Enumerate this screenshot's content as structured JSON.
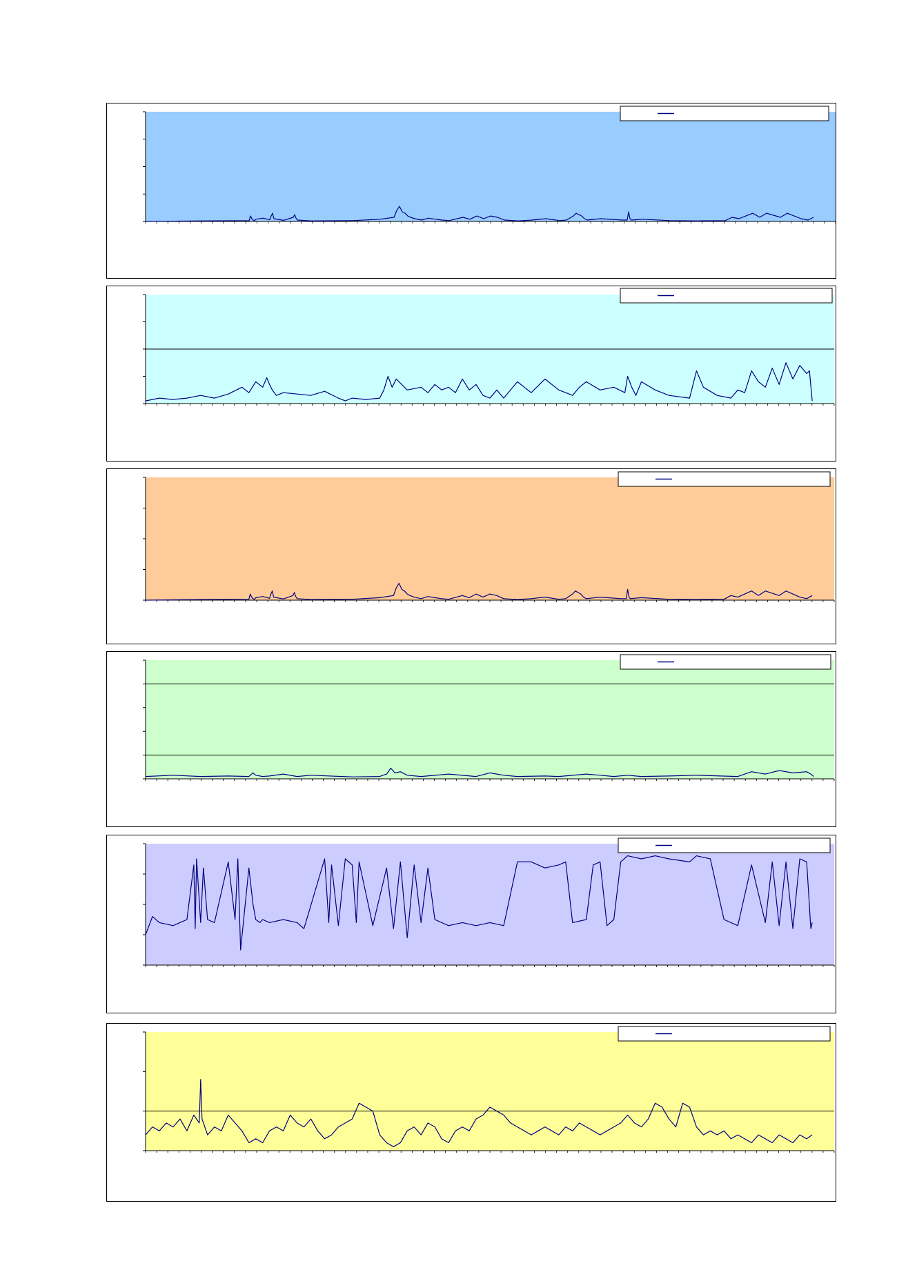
{
  "chart_data": [
    {
      "type": "line",
      "title": "",
      "legend_position": "top-right",
      "plot_bg": "#99ccff",
      "line_color": "#000080",
      "grid": {
        "horizontal": []
      },
      "ylim": [
        0,
        4
      ],
      "y_ticks": [
        0,
        1,
        2,
        3,
        4
      ],
      "x_range": [
        0,
        1000
      ],
      "series": [
        {
          "x": [
            0,
            80,
            150,
            152,
            154,
            156,
            158,
            160,
            170,
            180,
            182,
            184,
            186,
            200,
            214,
            216,
            218,
            220,
            240,
            300,
            340,
            360,
            364,
            368,
            372,
            376,
            380,
            384,
            390,
            400,
            410,
            420,
            430,
            440,
            460,
            470,
            480,
            490,
            500,
            510,
            520,
            540,
            560,
            580,
            600,
            610,
            620,
            624,
            628,
            632,
            636,
            640,
            660,
            690,
            698,
            700,
            702,
            704,
            720,
            760,
            800,
            840,
            850,
            860,
            870,
            880,
            890,
            900,
            920,
            930,
            940,
            950,
            960,
            968
          ],
          "y": [
            0.0,
            0.02,
            0.03,
            0.2,
            0.1,
            0.05,
            0.03,
            0.08,
            0.12,
            0.06,
            0.2,
            0.3,
            0.1,
            0.04,
            0.15,
            0.25,
            0.12,
            0.05,
            0.02,
            0.03,
            0.08,
            0.15,
            0.4,
            0.55,
            0.35,
            0.3,
            0.2,
            0.15,
            0.1,
            0.05,
            0.12,
            0.08,
            0.05,
            0.03,
            0.15,
            0.08,
            0.2,
            0.1,
            0.2,
            0.15,
            0.05,
            0.02,
            0.05,
            0.1,
            0.03,
            0.05,
            0.2,
            0.3,
            0.25,
            0.2,
            0.1,
            0.05,
            0.1,
            0.05,
            0.05,
            0.35,
            0.1,
            0.05,
            0.08,
            0.03,
            0.02,
            0.03,
            0.15,
            0.1,
            0.2,
            0.3,
            0.15,
            0.3,
            0.15,
            0.3,
            0.2,
            0.1,
            0.05,
            0.15
          ]
        }
      ]
    },
    {
      "type": "line",
      "title": "",
      "legend_position": "top-right",
      "plot_bg": "#ccffff",
      "line_color": "#000080",
      "grid": {
        "horizontal": [
          2
        ]
      },
      "ylim": [
        0,
        4
      ],
      "y_ticks": [
        0,
        1,
        2,
        3,
        4
      ],
      "x_range": [
        0,
        1000
      ],
      "series": [
        {
          "x": [
            0,
            20,
            40,
            60,
            80,
            100,
            120,
            140,
            150,
            160,
            170,
            176,
            180,
            184,
            190,
            200,
            220,
            240,
            260,
            280,
            290,
            300,
            320,
            340,
            346,
            352,
            358,
            364,
            380,
            400,
            410,
            420,
            430,
            440,
            450,
            460,
            470,
            480,
            490,
            500,
            510,
            520,
            540,
            560,
            580,
            600,
            610,
            620,
            630,
            640,
            660,
            680,
            696,
            700,
            706,
            712,
            720,
            740,
            760,
            790,
            796,
            800,
            810,
            830,
            850,
            860,
            870,
            880,
            890,
            900,
            910,
            920,
            930,
            940,
            950,
            960,
            964,
            968
          ],
          "y": [
            0.1,
            0.2,
            0.15,
            0.2,
            0.3,
            0.2,
            0.35,
            0.6,
            0.4,
            0.8,
            0.6,
            0.95,
            0.7,
            0.5,
            0.3,
            0.4,
            0.35,
            0.3,
            0.45,
            0.2,
            0.1,
            0.2,
            0.15,
            0.2,
            0.5,
            1.0,
            0.6,
            0.9,
            0.5,
            0.6,
            0.4,
            0.7,
            0.5,
            0.6,
            0.4,
            0.9,
            0.5,
            0.7,
            0.3,
            0.2,
            0.5,
            0.2,
            0.8,
            0.4,
            0.9,
            0.5,
            0.4,
            0.3,
            0.6,
            0.8,
            0.5,
            0.6,
            0.4,
            1.0,
            0.6,
            0.3,
            0.8,
            0.5,
            0.3,
            0.2,
            0.8,
            1.2,
            0.6,
            0.3,
            0.2,
            0.5,
            0.4,
            1.2,
            0.8,
            0.6,
            1.3,
            0.7,
            1.5,
            0.9,
            1.4,
            1.1,
            1.2,
            0.1
          ]
        }
      ]
    },
    {
      "type": "line",
      "title": "",
      "legend_position": "top-right",
      "plot_bg": "#ffcc99",
      "line_color": "#000080",
      "grid": {
        "horizontal": []
      },
      "ylim": [
        0,
        4
      ],
      "y_ticks": [
        0,
        1,
        2,
        3,
        4
      ],
      "x_range": [
        0,
        1000
      ],
      "series": [
        {
          "x": [
            0,
            80,
            150,
            152,
            154,
            156,
            158,
            160,
            170,
            180,
            182,
            184,
            186,
            200,
            214,
            216,
            218,
            220,
            240,
            300,
            340,
            360,
            364,
            368,
            372,
            376,
            380,
            384,
            390,
            400,
            410,
            420,
            430,
            440,
            460,
            470,
            480,
            490,
            500,
            510,
            520,
            540,
            560,
            580,
            600,
            610,
            620,
            624,
            628,
            632,
            636,
            640,
            660,
            690,
            698,
            700,
            702,
            704,
            720,
            760,
            800,
            840,
            850,
            860,
            870,
            880,
            890,
            900,
            920,
            930,
            940,
            950,
            960,
            968
          ],
          "y": [
            0.0,
            0.02,
            0.03,
            0.2,
            0.1,
            0.05,
            0.03,
            0.08,
            0.12,
            0.06,
            0.2,
            0.3,
            0.1,
            0.04,
            0.15,
            0.25,
            0.12,
            0.05,
            0.02,
            0.03,
            0.08,
            0.15,
            0.4,
            0.55,
            0.35,
            0.3,
            0.2,
            0.15,
            0.1,
            0.05,
            0.12,
            0.08,
            0.05,
            0.03,
            0.15,
            0.08,
            0.2,
            0.1,
            0.2,
            0.15,
            0.05,
            0.02,
            0.05,
            0.1,
            0.03,
            0.05,
            0.2,
            0.3,
            0.25,
            0.2,
            0.1,
            0.05,
            0.1,
            0.05,
            0.05,
            0.35,
            0.1,
            0.05,
            0.08,
            0.03,
            0.02,
            0.03,
            0.15,
            0.1,
            0.2,
            0.3,
            0.15,
            0.3,
            0.15,
            0.3,
            0.2,
            0.1,
            0.05,
            0.15
          ]
        }
      ]
    },
    {
      "type": "line",
      "title": "",
      "legend_position": "top-right",
      "plot_bg": "#ccffcc",
      "line_color": "#000080",
      "grid": {
        "horizontal": [
          1,
          4
        ]
      },
      "ylim": [
        0,
        5
      ],
      "y_ticks": [
        0,
        1,
        2,
        3,
        4,
        5
      ],
      "x_range": [
        0,
        1000
      ],
      "series": [
        {
          "x": [
            0,
            40,
            80,
            120,
            150,
            156,
            160,
            170,
            180,
            200,
            220,
            240,
            300,
            340,
            350,
            356,
            362,
            370,
            380,
            400,
            440,
            480,
            500,
            520,
            540,
            580,
            600,
            640,
            660,
            680,
            700,
            720,
            760,
            800,
            860,
            880,
            900,
            920,
            940,
            960,
            966,
            970
          ],
          "y": [
            0.1,
            0.15,
            0.1,
            0.12,
            0.1,
            0.25,
            0.15,
            0.1,
            0.12,
            0.2,
            0.1,
            0.15,
            0.08,
            0.1,
            0.2,
            0.45,
            0.25,
            0.3,
            0.15,
            0.1,
            0.2,
            0.1,
            0.25,
            0.15,
            0.1,
            0.12,
            0.1,
            0.2,
            0.15,
            0.1,
            0.15,
            0.1,
            0.12,
            0.15,
            0.1,
            0.3,
            0.2,
            0.35,
            0.25,
            0.3,
            0.2,
            0.1
          ]
        }
      ]
    },
    {
      "type": "line",
      "title": "",
      "legend_position": "top-right",
      "plot_bg": "#ccccff",
      "line_color": "#000080",
      "grid": {
        "horizontal": []
      },
      "ylim": [
        0,
        4
      ],
      "y_ticks": [
        0,
        1,
        2,
        3,
        4
      ],
      "x_range": [
        0,
        1000
      ],
      "series": [
        {
          "x": [
            0,
            10,
            20,
            40,
            60,
            70,
            72,
            74,
            80,
            84,
            90,
            100,
            120,
            130,
            134,
            138,
            150,
            156,
            160,
            166,
            170,
            180,
            200,
            220,
            230,
            260,
            266,
            270,
            280,
            290,
            300,
            306,
            310,
            330,
            350,
            360,
            370,
            380,
            390,
            400,
            410,
            420,
            440,
            460,
            480,
            500,
            520,
            540,
            560,
            580,
            600,
            610,
            620,
            640,
            650,
            660,
            670,
            680,
            690,
            700,
            720,
            740,
            760,
            790,
            800,
            820,
            840,
            860,
            880,
            900,
            910,
            920,
            930,
            940,
            950,
            960,
            966,
            968
          ],
          "y": [
            1.0,
            1.6,
            1.4,
            1.3,
            1.5,
            3.3,
            1.2,
            3.5,
            1.4,
            3.2,
            1.5,
            1.4,
            3.4,
            1.5,
            3.5,
            0.5,
            3.2,
            2.0,
            1.5,
            1.4,
            1.5,
            1.4,
            1.5,
            1.4,
            1.2,
            3.5,
            1.4,
            3.3,
            1.3,
            3.5,
            3.3,
            1.4,
            3.4,
            1.3,
            3.2,
            1.2,
            3.4,
            0.9,
            3.3,
            1.4,
            3.2,
            1.5,
            1.3,
            1.4,
            1.3,
            1.4,
            1.3,
            3.4,
            3.4,
            3.2,
            3.3,
            3.4,
            1.4,
            1.5,
            3.3,
            3.4,
            1.3,
            1.5,
            3.4,
            3.6,
            3.5,
            3.6,
            3.5,
            3.4,
            3.6,
            3.5,
            1.5,
            1.3,
            3.3,
            1.4,
            3.4,
            1.3,
            3.4,
            1.2,
            3.5,
            3.4,
            1.2,
            1.4
          ]
        }
      ]
    },
    {
      "type": "line",
      "title": "",
      "legend_position": "top-right",
      "plot_bg": "#ffff99",
      "line_color": "#000080",
      "grid": {
        "horizontal": [
          1
        ]
      },
      "ylim": [
        0,
        3
      ],
      "y_ticks": [
        0,
        1,
        2,
        3
      ],
      "x_range": [
        0,
        1000
      ],
      "series": [
        {
          "x": [
            0,
            10,
            20,
            30,
            40,
            50,
            60,
            70,
            78,
            80,
            82,
            90,
            100,
            110,
            120,
            130,
            140,
            150,
            160,
            170,
            180,
            190,
            200,
            210,
            220,
            230,
            240,
            250,
            260,
            270,
            280,
            290,
            300,
            310,
            320,
            330,
            340,
            350,
            360,
            370,
            380,
            390,
            400,
            410,
            420,
            430,
            440,
            450,
            460,
            470,
            480,
            490,
            500,
            510,
            520,
            530,
            540,
            550,
            560,
            570,
            580,
            590,
            600,
            610,
            620,
            630,
            640,
            650,
            660,
            670,
            680,
            690,
            700,
            710,
            720,
            730,
            740,
            750,
            760,
            770,
            780,
            790,
            800,
            810,
            820,
            830,
            840,
            850,
            860,
            870,
            880,
            890,
            900,
            910,
            920,
            930,
            940,
            950,
            960,
            968
          ],
          "y": [
            0.4,
            0.6,
            0.5,
            0.7,
            0.6,
            0.8,
            0.5,
            0.9,
            0.7,
            1.8,
            0.8,
            0.4,
            0.6,
            0.5,
            0.9,
            0.7,
            0.5,
            0.2,
            0.3,
            0.2,
            0.5,
            0.6,
            0.5,
            0.9,
            0.7,
            0.6,
            0.8,
            0.5,
            0.3,
            0.4,
            0.6,
            0.7,
            0.8,
            1.2,
            1.1,
            1.0,
            0.4,
            0.2,
            0.1,
            0.2,
            0.5,
            0.6,
            0.4,
            0.7,
            0.6,
            0.3,
            0.2,
            0.5,
            0.6,
            0.5,
            0.8,
            0.9,
            1.1,
            1.0,
            0.9,
            0.7,
            0.6,
            0.5,
            0.4,
            0.5,
            0.6,
            0.5,
            0.4,
            0.6,
            0.5,
            0.7,
            0.6,
            0.5,
            0.4,
            0.5,
            0.6,
            0.7,
            0.9,
            0.7,
            0.6,
            0.8,
            1.2,
            1.1,
            0.8,
            0.6,
            1.2,
            1.1,
            0.6,
            0.4,
            0.5,
            0.4,
            0.5,
            0.3,
            0.4,
            0.3,
            0.2,
            0.4,
            0.3,
            0.2,
            0.4,
            0.3,
            0.2,
            0.4,
            0.3,
            0.4
          ]
        }
      ]
    }
  ]
}
